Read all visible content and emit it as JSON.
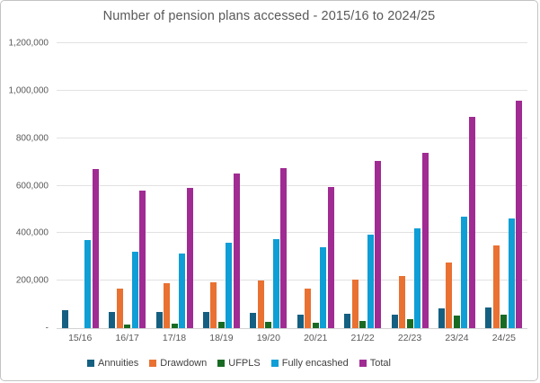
{
  "chart_data": {
    "type": "bar",
    "title": "Number of pension plans accessed - 2015/16 to 2024/25",
    "categories": [
      "15/16",
      "16/17",
      "17/18",
      "18/19",
      "19/20",
      "20/21",
      "21/22",
      "22/23",
      "23/24",
      "24/25"
    ],
    "series": [
      {
        "name": "Annuities",
        "color": "#156082",
        "values": [
          75000,
          70000,
          70000,
          70000,
          65000,
          55000,
          62000,
          56000,
          82000,
          88000
        ]
      },
      {
        "name": "Drawdown",
        "color": "#E97132",
        "values": [
          0,
          165000,
          190000,
          195000,
          200000,
          165000,
          205000,
          220000,
          276000,
          348000
        ]
      },
      {
        "name": "UFPLS",
        "color": "#196B24",
        "values": [
          0,
          15000,
          20000,
          25000,
          27000,
          23000,
          30000,
          38000,
          52000,
          57000
        ]
      },
      {
        "name": "Fully encashed",
        "color": "#0F9ED5",
        "values": [
          370000,
          320000,
          315000,
          360000,
          375000,
          340000,
          395000,
          420000,
          470000,
          462000
        ]
      },
      {
        "name": "Total",
        "color": "#A02B93",
        "values": [
          670000,
          580000,
          590000,
          650000,
          675000,
          595000,
          705000,
          740000,
          888000,
          958000
        ]
      }
    ],
    "ylim": [
      0,
      1200000
    ],
    "ytick_step": 200000,
    "ytick_labels": [
      "-",
      "200,000",
      "400,000",
      "600,000",
      "800,000",
      "1,000,000",
      "1,200,000"
    ],
    "grid": true,
    "legend_position": "bottom",
    "axis_text_color": "#595959",
    "title_color": "#595959",
    "gridline_color": "#e2e2e2"
  }
}
